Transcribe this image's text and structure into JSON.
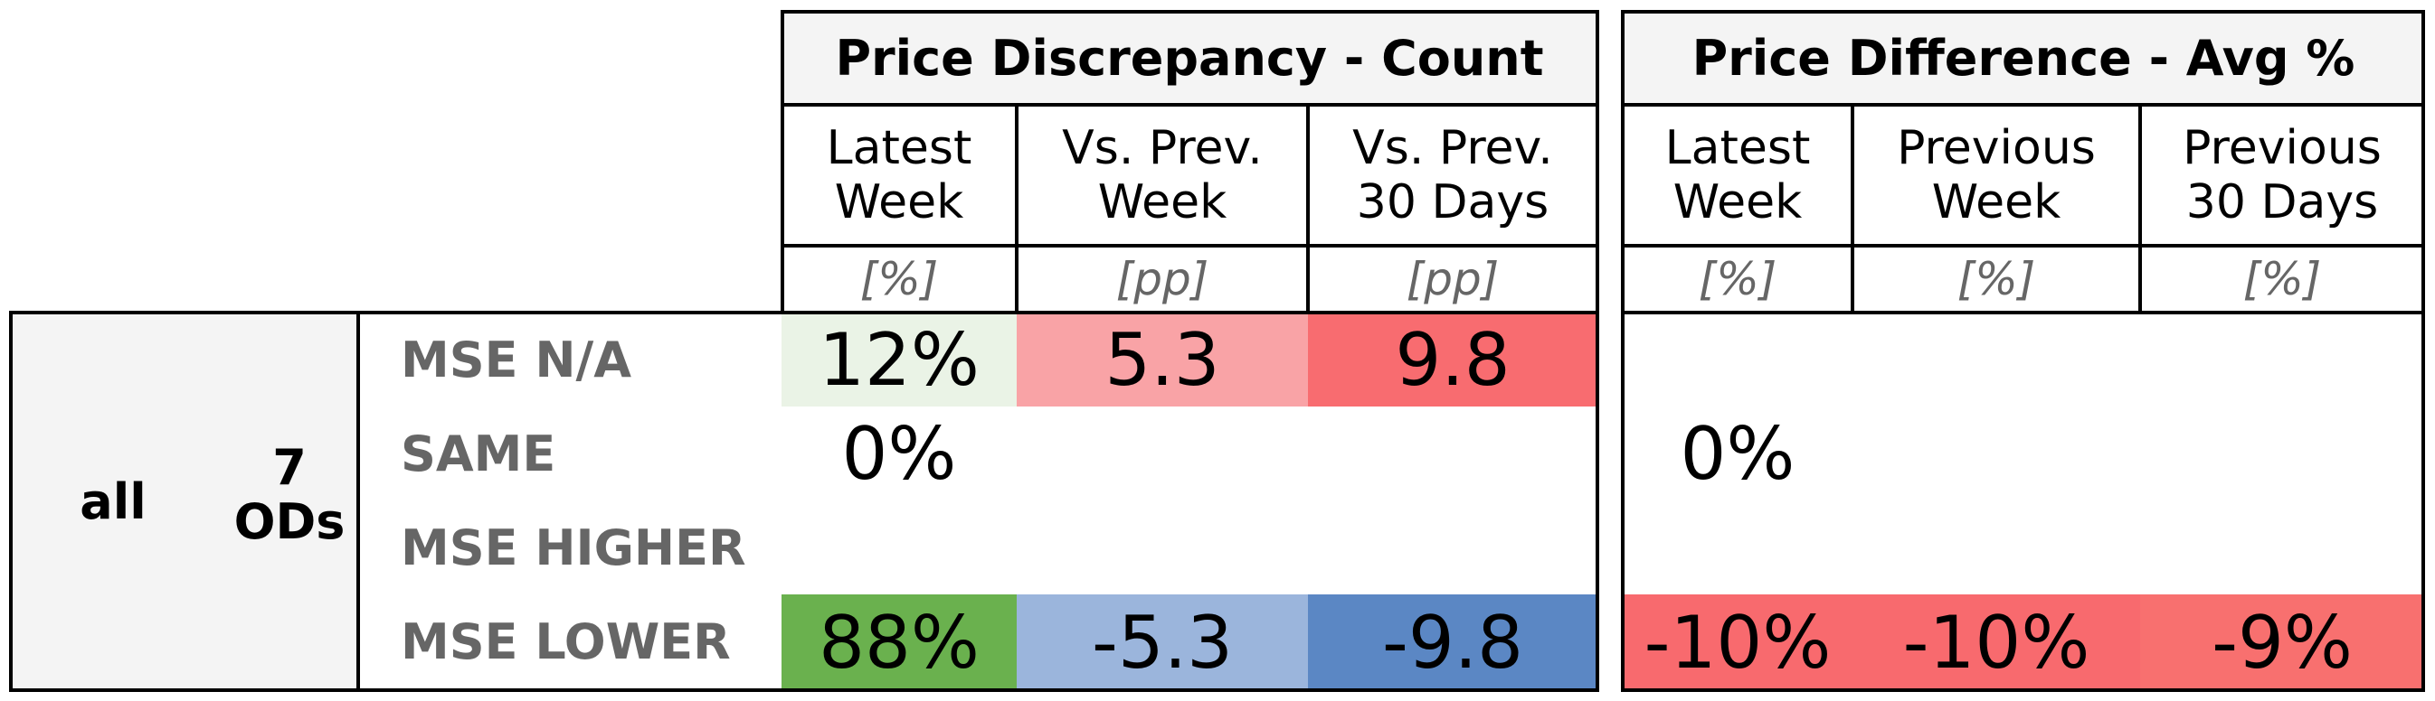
{
  "group": {
    "label": "all",
    "count_line1": "7",
    "count_line2": "ODs"
  },
  "section_count": {
    "title": "Price Discrepancy - Count",
    "columns": [
      {
        "line1": "Latest",
        "line2": "Week",
        "unit": "[%]"
      },
      {
        "line1": "Vs. Prev.",
        "line2": "Week",
        "unit": "[pp]"
      },
      {
        "line1": "Vs. Prev.",
        "line2": "30 Days",
        "unit": "[pp]"
      }
    ]
  },
  "section_avg": {
    "title": "Price Difference - Avg %",
    "columns": [
      {
        "line1": "Latest",
        "line2": "Week",
        "unit": "[%]"
      },
      {
        "line1": "Previous",
        "line2": "Week",
        "unit": "[%]"
      },
      {
        "line1": "Previous",
        "line2": "30 Days",
        "unit": "[%]"
      }
    ]
  },
  "rows": [
    {
      "label": "MSE N/A",
      "count": [
        "12%",
        "5.3",
        "9.8"
      ],
      "avg": [
        "",
        "",
        ""
      ]
    },
    {
      "label": "SAME",
      "count": [
        "0%",
        "",
        ""
      ],
      "avg": [
        "0%",
        "",
        ""
      ]
    },
    {
      "label": "MSE HIGHER",
      "count": [
        "",
        "",
        ""
      ],
      "avg": [
        "",
        "",
        ""
      ]
    },
    {
      "label": "MSE LOWER",
      "count": [
        "88%",
        "-5.3",
        "-9.8"
      ],
      "avg": [
        "-10%",
        "-10%",
        "-9%"
      ]
    }
  ],
  "colors": {
    "header_bg": "#f4f4f4",
    "count_na_latest": "#eaf3e6",
    "count_na_prev_week": "#f9a3a6",
    "count_na_prev_30": "#f86c70",
    "count_lower_latest": "#6ab14e",
    "count_lower_prev_week": "#9bb5dc",
    "count_lower_prev_30": "#5b87c4",
    "avg_lower_latest": "#f86a6e",
    "avg_lower_prev_week": "#f86a6e",
    "avg_lower_prev_30": "#f8706f"
  }
}
